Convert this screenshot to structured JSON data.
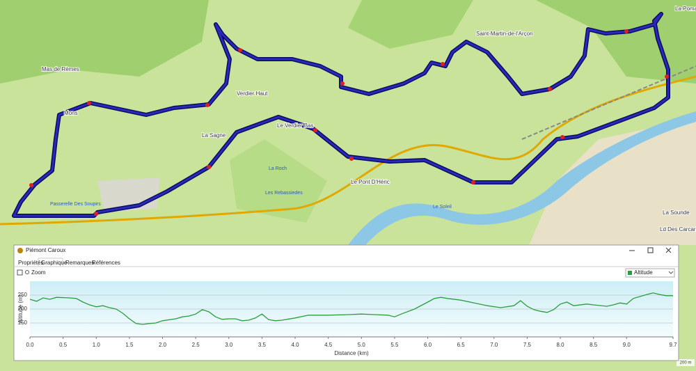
{
  "map": {
    "labels": [
      "Mas de Rèmes",
      "Mons",
      "Verdier Haut",
      "La Sagne",
      "Le Verdier Bas",
      "Le Pont D'Héric",
      "Saint-Martin-de-l'Arçon",
      "Passerelle Des Soupirs",
      "La Roch",
      "Les Rebassiedes",
      "Le Soleil",
      "La Pomarède",
      "La Sounde",
      "Ld Des Carcaries"
    ],
    "scale": "200 m"
  },
  "window": {
    "title": "Piémont Caroux",
    "tabs": [
      "Propriétés",
      "Graphique",
      "Remarques",
      "Références"
    ],
    "zoom": "Zoom"
  },
  "chart_data": {
    "type": "line",
    "x_label": "Distance (km)",
    "y_label": "Altitude (m)",
    "x": [
      0.0,
      0.1,
      0.2,
      0.3,
      0.4,
      0.6,
      0.7,
      0.8,
      0.9,
      1.0,
      1.1,
      1.2,
      1.3,
      1.4,
      1.5,
      1.6,
      1.7,
      1.8,
      1.9,
      2.0,
      2.2,
      2.3,
      2.4,
      2.5,
      2.6,
      2.7,
      2.8,
      2.9,
      3.0,
      3.1,
      3.2,
      3.3,
      3.4,
      3.5,
      3.6,
      3.7,
      3.8,
      4.0,
      4.2,
      4.5,
      4.8,
      5.0,
      5.2,
      5.4,
      5.5,
      5.6,
      5.8,
      6.0,
      6.1,
      6.2,
      6.3,
      6.5,
      6.7,
      6.9,
      7.1,
      7.3,
      7.4,
      7.5,
      7.6,
      7.7,
      7.8,
      7.9,
      8.0,
      8.1,
      8.2,
      8.4,
      8.5,
      8.7,
      8.8,
      8.9,
      9.0,
      9.1,
      9.3,
      9.4,
      9.5,
      9.6,
      9.7
    ],
    "series": [
      {
        "name": "Altitude",
        "color": "#2a9d3c",
        "values": [
          235,
          228,
          240,
          235,
          242,
          240,
          238,
          225,
          215,
          208,
          212,
          205,
          200,
          185,
          165,
          148,
          145,
          148,
          150,
          158,
          165,
          172,
          175,
          182,
          198,
          190,
          172,
          163,
          165,
          165,
          158,
          160,
          168,
          182,
          162,
          158,
          160,
          168,
          178,
          178,
          180,
          182,
          180,
          178,
          172,
          182,
          200,
          225,
          238,
          242,
          238,
          232,
          222,
          212,
          205,
          212,
          230,
          210,
          198,
          192,
          188,
          198,
          218,
          225,
          212,
          218,
          215,
          210,
          215,
          222,
          218,
          238,
          252,
          258,
          252,
          248,
          248
        ]
      }
    ],
    "xlim": [
      0,
      9.7
    ],
    "ylim": [
      100,
      300
    ],
    "xticks": [
      {
        "value": 0,
        "label": "0.0"
      },
      0.5,
      {
        "value": 1,
        "label": "1.0"
      },
      1.5,
      {
        "value": 2,
        "label": "2.0"
      },
      2.5,
      {
        "value": 3,
        "label": "3.0"
      },
      3.5,
      {
        "value": 4,
        "label": "4.0"
      },
      4.5,
      {
        "value": 5,
        "label": "5.0"
      },
      5.5,
      {
        "value": 6,
        "label": "6.0"
      },
      6.5,
      {
        "value": 7,
        "label": "7.0"
      },
      7.5,
      {
        "value": 8,
        "label": "8.0"
      },
      8.5,
      {
        "value": 9,
        "label": "9.0"
      },
      9.7
    ],
    "yticks": [
      150,
      200,
      250
    ],
    "grid": true
  }
}
